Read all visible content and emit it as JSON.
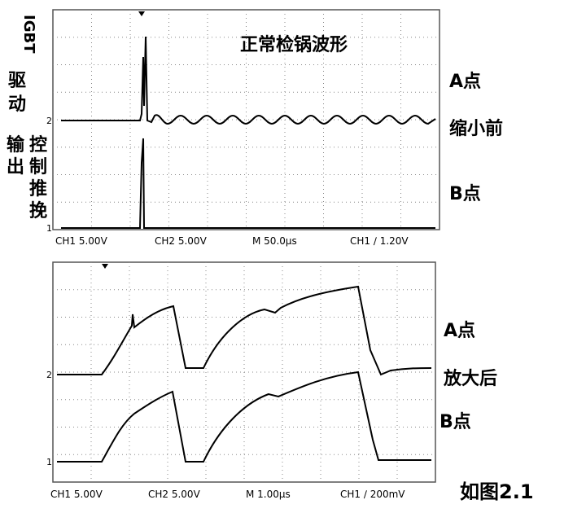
{
  "top_scope": {
    "title": "正常检锅波形",
    "left_label_a": [
      "IGBT",
      "驱",
      "动"
    ],
    "left_label_b": [
      "输",
      "出"
    ],
    "left_label_c": [
      "控",
      "制",
      "推",
      "挽"
    ],
    "right_labels": [
      "A点",
      "缩小前",
      "B点"
    ],
    "markers": [
      "2",
      "1"
    ],
    "status": [
      "CH1  5.00V",
      "CH2  5.00V",
      "M 50.0µs",
      "CH1 ∕ 1.20V"
    ]
  },
  "bottom_scope": {
    "right_labels": [
      "A点",
      "放大后",
      "B点"
    ],
    "markers": [
      "2",
      "1"
    ],
    "status": [
      "CH1  5.00V",
      "CH2  5.00V",
      "M 1.00µs",
      "CH1 ∕ 200mV"
    ]
  },
  "caption": "如图2.1"
}
